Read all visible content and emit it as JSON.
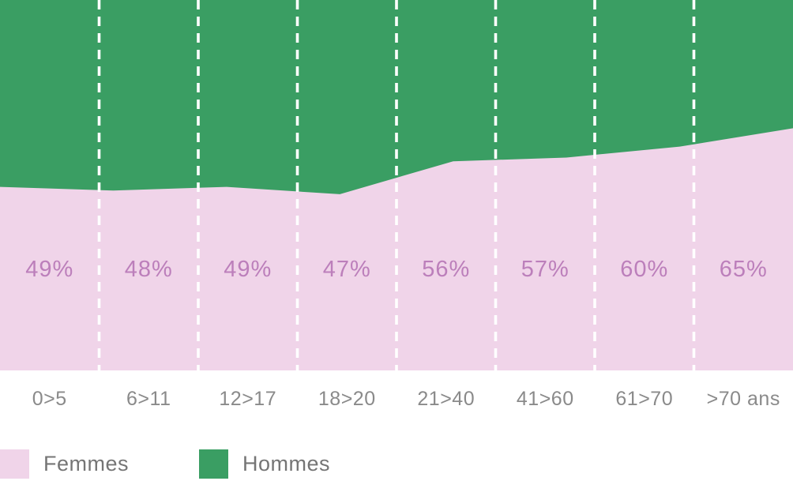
{
  "chart_data": {
    "type": "area",
    "stacked": true,
    "normalized_percent": true,
    "categories": [
      "0>5",
      "6>11",
      "12>17",
      "18>20",
      "21>40",
      "41>60",
      "61>70",
      ">70 ans"
    ],
    "series": [
      {
        "name": "Femmes",
        "color": "#F0D4E9",
        "values": [
          49,
          48,
          49,
          47,
          56,
          57,
          60,
          65
        ],
        "value_labels": [
          "49%",
          "48%",
          "49%",
          "47%",
          "56%",
          "57%",
          "60%",
          "65%"
        ],
        "label_color": "#BC7FBB"
      },
      {
        "name": "Hommes",
        "color": "#3A9E63",
        "values": [
          51,
          52,
          51,
          53,
          44,
          43,
          40,
          35
        ]
      }
    ],
    "ylim": [
      0,
      100
    ],
    "xlabel": "",
    "ylabel": "",
    "grid": "vertical-dashed-white-dividers",
    "divider_color": "#FFFFFF",
    "legend_position": "bottom-left"
  },
  "axis": {
    "label_color": "#8A8A8A"
  },
  "legend": {
    "text_color": "#757575",
    "items": [
      {
        "label": "Femmes",
        "color": "#F0D4E9"
      },
      {
        "label": "Hommes",
        "color": "#3A9E63"
      }
    ]
  }
}
